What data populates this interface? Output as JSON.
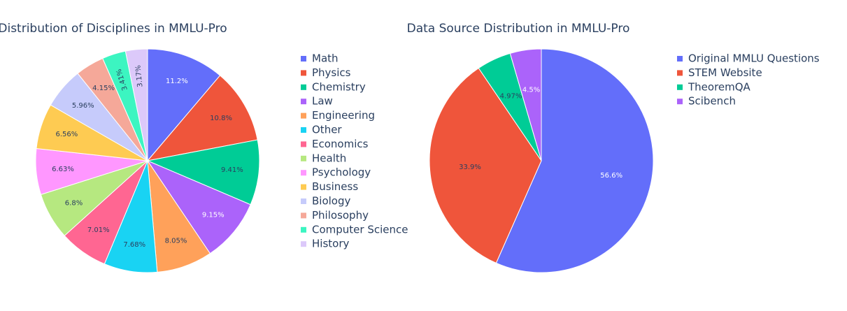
{
  "chart_data": [
    {
      "type": "pie",
      "title": "Distribution of Disciplines in MMLU-Pro",
      "legend_position": "right",
      "slices": [
        {
          "label": "Math",
          "value": 11.2,
          "text": "11.2%",
          "color": "#636efa"
        },
        {
          "label": "Physics",
          "value": 10.8,
          "text": "10.8%",
          "color": "#ef553b"
        },
        {
          "label": "Chemistry",
          "value": 9.41,
          "text": "9.41%",
          "color": "#00cc96"
        },
        {
          "label": "Law",
          "value": 9.15,
          "text": "9.15%",
          "color": "#ab63fa"
        },
        {
          "label": "Engineering",
          "value": 8.05,
          "text": "8.05%",
          "color": "#ffa15a"
        },
        {
          "label": "Other",
          "value": 7.68,
          "text": "7.68%",
          "color": "#19d3f3"
        },
        {
          "label": "Economics",
          "value": 7.01,
          "text": "7.01%",
          "color": "#ff6692"
        },
        {
          "label": "Health",
          "value": 6.8,
          "text": "6.8%",
          "color": "#b6e880"
        },
        {
          "label": "Psychology",
          "value": 6.63,
          "text": "6.63%",
          "color": "#ff97ff"
        },
        {
          "label": "Business",
          "value": 6.56,
          "text": "6.56%",
          "color": "#fecb52"
        },
        {
          "label": "Biology",
          "value": 5.96,
          "text": "5.96%",
          "color": "#c6cbfb"
        },
        {
          "label": "Philosophy",
          "value": 4.15,
          "text": "4.15%",
          "color": "#f5a899"
        },
        {
          "label": "Computer Science",
          "value": 3.41,
          "text": "3.41%",
          "color": "#3cf5c1"
        },
        {
          "label": "History",
          "value": 3.17,
          "text": "3.17%",
          "color": "#dcc9fa"
        }
      ]
    },
    {
      "type": "pie",
      "title": "Data Source Distribution in MMLU-Pro",
      "legend_position": "right",
      "slices": [
        {
          "label": "Original MMLU Questions",
          "value": 56.6,
          "text": "56.6%",
          "color": "#636efa"
        },
        {
          "label": "STEM Website",
          "value": 33.9,
          "text": "33.9%",
          "color": "#ef553b"
        },
        {
          "label": "TheoremQA",
          "value": 4.97,
          "text": "4.97%",
          "color": "#00cc96"
        },
        {
          "label": "Scibench",
          "value": 4.5,
          "text": "4.5%",
          "color": "#ab63fa"
        }
      ]
    }
  ]
}
